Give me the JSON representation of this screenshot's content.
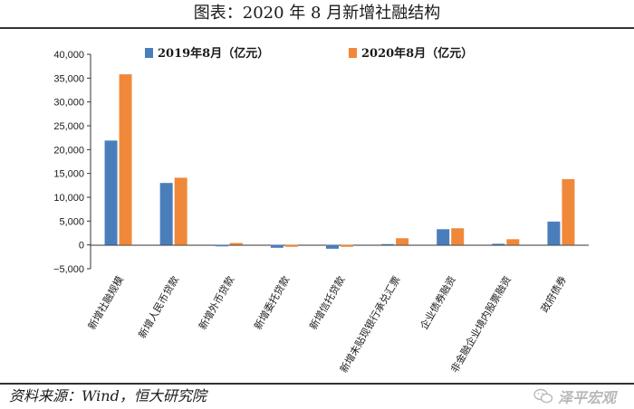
{
  "header": {
    "title": "图表：2020 年 8 月新增社融结构"
  },
  "footer": {
    "source": "资料来源：Wind，恒大研究院",
    "watermark": "泽平宏观"
  },
  "colors": {
    "series_2019": "#4a7ebb",
    "series_2020": "#f0883a"
  },
  "icons": {
    "watermark": "wechat-icon"
  },
  "chart_data": {
    "type": "bar",
    "categories": [
      "新增社融规模",
      "新增人民币贷款",
      "新增外币贷款",
      "新增委托贷款",
      "新增信托贷款",
      "新增未贴现银行承兑汇票",
      "企业债券融资",
      "非金融企业境内股票融资",
      "政府债券"
    ],
    "series": [
      {
        "name": "2019年8月（亿元）",
        "values": [
          21900,
          13000,
          -300,
          -600,
          -800,
          170,
          3300,
          240,
          4900
        ]
      },
      {
        "name": "2020年8月（亿元）",
        "values": [
          35800,
          14100,
          400,
          -400,
          -400,
          1400,
          3500,
          1200,
          13800
        ]
      }
    ],
    "yticks": [
      "40,000",
      "35,000",
      "30,000",
      "25,000",
      "20,000",
      "15,000",
      "10,000",
      "5,000",
      "0",
      "−5,000"
    ],
    "ylim": [
      -5000,
      40000
    ],
    "legend": "top"
  }
}
